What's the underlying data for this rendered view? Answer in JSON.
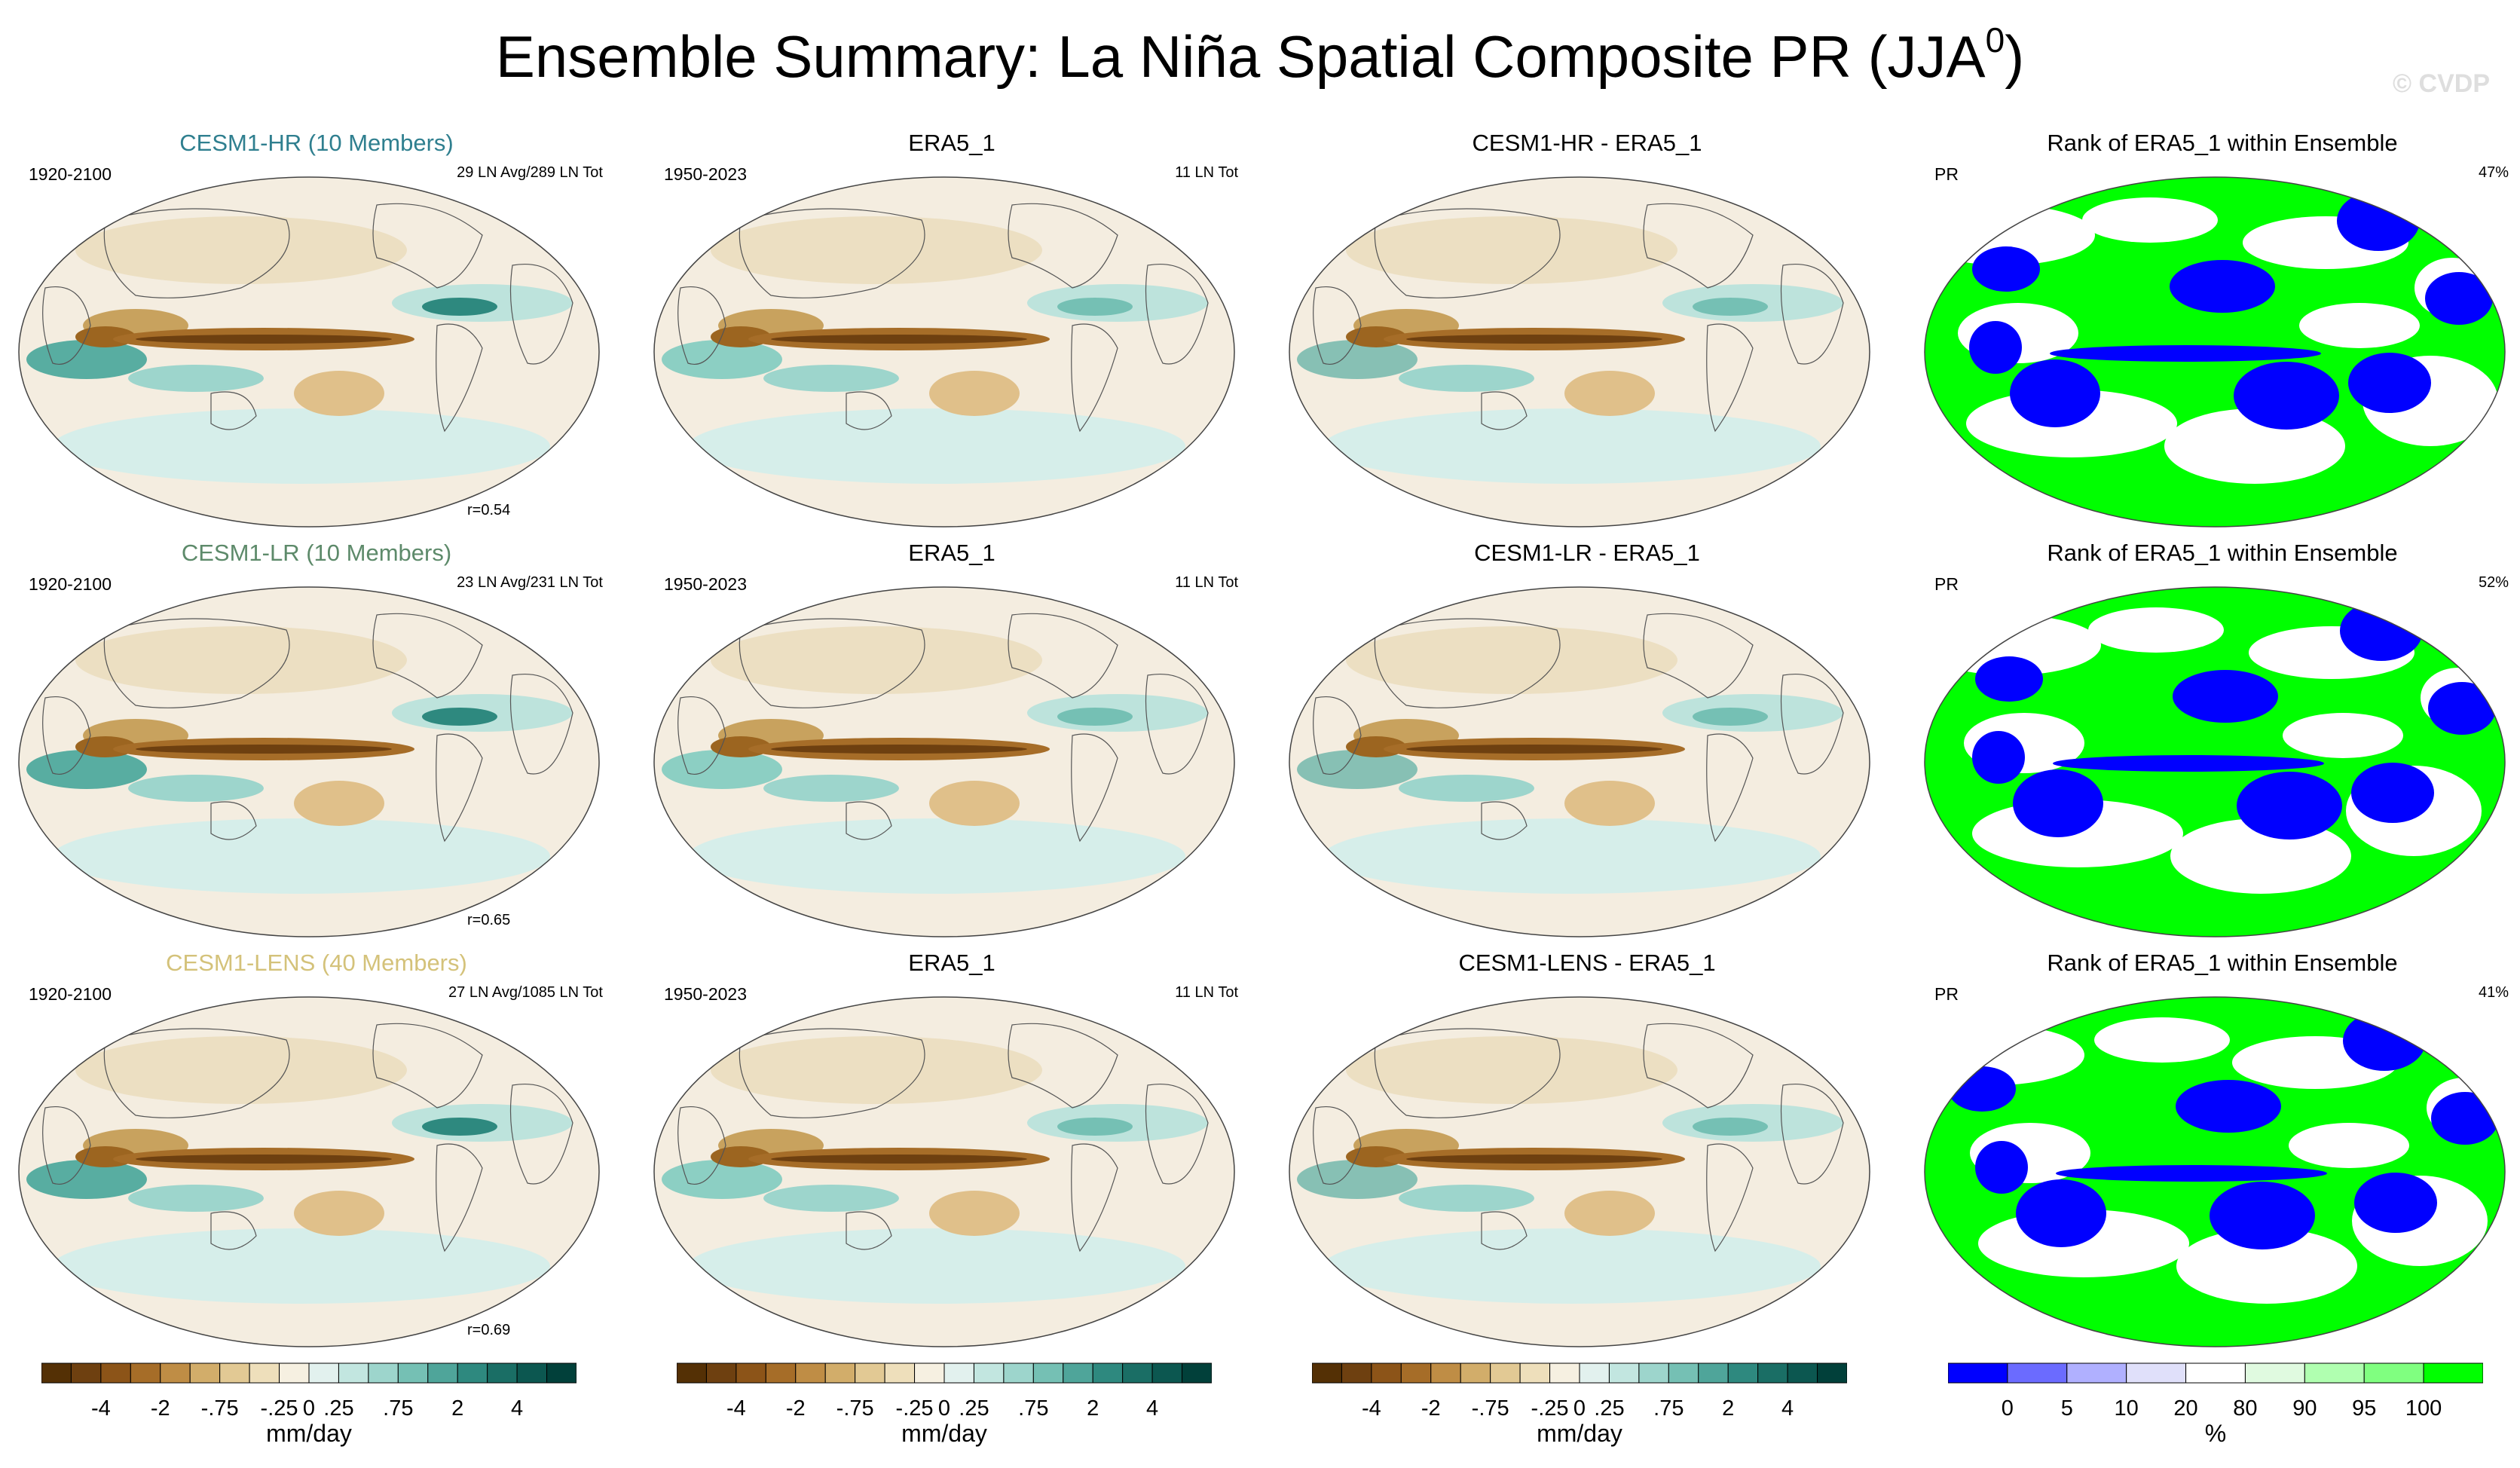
{
  "title": "Ensemble Summary: La Niña Spatial Composite PR (JJA",
  "title_sup": "0",
  "title_close": ")",
  "watermark": "© CVDP",
  "rows": [
    {
      "model": {
        "title": "CESM1-HR (10 Members)",
        "title_color": "#2f7f8f",
        "years": "1920-2100",
        "count": "29 LN Avg/289 LN Tot",
        "r": "r=0.54"
      },
      "obs": {
        "title": "ERA5_1",
        "years": "1950-2023",
        "count": "11 LN Tot"
      },
      "diff": {
        "title": "CESM1-HR - ERA5_1"
      },
      "rank": {
        "title": "Rank of ERA5_1 within Ensemble",
        "var": "PR",
        "pct": "47%"
      }
    },
    {
      "model": {
        "title": "CESM1-LR (10 Members)",
        "title_color": "#5d8a6a",
        "years": "1920-2100",
        "count": "23 LN Avg/231 LN Tot",
        "r": "r=0.65"
      },
      "obs": {
        "title": "ERA5_1",
        "years": "1950-2023",
        "count": "11 LN Tot"
      },
      "diff": {
        "title": "CESM1-LR - ERA5_1"
      },
      "rank": {
        "title": "Rank of ERA5_1 within Ensemble",
        "var": "PR",
        "pct": "52%"
      }
    },
    {
      "model": {
        "title": "CESM1-LENS (40 Members)",
        "title_color": "#d4c27a",
        "years": "1920-2100",
        "count": "27 LN Avg/1085 LN Tot",
        "r": "r=0.69"
      },
      "obs": {
        "title": "ERA5_1",
        "years": "1950-2023",
        "count": "11 LN Tot"
      },
      "diff": {
        "title": "CESM1-LENS - ERA5_1"
      },
      "rank": {
        "title": "Rank of ERA5_1 within Ensemble",
        "var": "PR",
        "pct": "41%"
      }
    }
  ],
  "pr_colorbar": {
    "units": "mm/day",
    "ticks": [
      "-4",
      "-2",
      "-.75",
      "-.25",
      "0",
      ".25",
      ".75",
      "2",
      "4"
    ],
    "colors": [
      "#543005",
      "#6e4010",
      "#8c5418",
      "#a66d28",
      "#bf8d45",
      "#d2ad6a",
      "#e2c994",
      "#eedfbb",
      "#f6f0e1",
      "#e2f1ee",
      "#c2e6e0",
      "#9dd5cc",
      "#75c0b4",
      "#4fa59a",
      "#2e897f",
      "#1a6e65",
      "#0c5750",
      "#01403a"
    ]
  },
  "rank_colorbar": {
    "units": "%",
    "ticks": [
      "0",
      "5",
      "10",
      "20",
      "80",
      "90",
      "95",
      "100"
    ],
    "colors": [
      "#0000ff",
      "#6b6bff",
      "#b0b0ff",
      "#e0e0fa",
      "#ffffff",
      "#e0fae0",
      "#b0ffb0",
      "#80ff80",
      "#00ff00"
    ]
  }
}
